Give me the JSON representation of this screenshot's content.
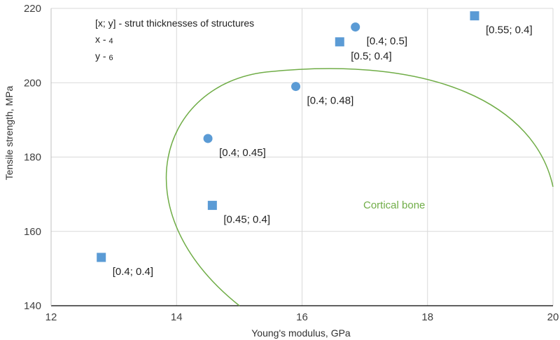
{
  "chart_data": {
    "type": "scatter",
    "xlabel": "Young's modulus, GPa",
    "ylabel": "Tensile strength, MPa",
    "xlim": [
      12,
      20
    ],
    "ylim": [
      140,
      220
    ],
    "x_ticks": [
      12,
      14,
      16,
      18,
      20
    ],
    "y_ticks": [
      140,
      160,
      180,
      200,
      220
    ],
    "grid": true,
    "marker_color": "#5B9BD5",
    "points": [
      {
        "x": 12.8,
        "y": 153,
        "marker": "square",
        "label": "[0.4; 0.4]"
      },
      {
        "x": 14.5,
        "y": 185,
        "marker": "circle",
        "label": "[0.4; 0.45]"
      },
      {
        "x": 14.57,
        "y": 167,
        "marker": "square",
        "label": "[0.45; 0.4]"
      },
      {
        "x": 15.9,
        "y": 199,
        "marker": "circle",
        "label": "[0.4; 0.48]"
      },
      {
        "x": 16.6,
        "y": 211,
        "marker": "square",
        "label": "[0.5; 0.4]"
      },
      {
        "x": 16.85,
        "y": 215,
        "marker": "circle",
        "label": "[0.4; 0.5]"
      },
      {
        "x": 18.75,
        "y": 218,
        "marker": "square",
        "label": "[0.55; 0.4]"
      }
    ],
    "legend_note": {
      "line1": "[x; y] - strut thicknesses of structures",
      "line2_prefix": "x - ",
      "line2_value": "4",
      "line3_prefix": "y - ",
      "line3_value": "6"
    },
    "region": {
      "label": "Cortical bone",
      "color": "#70AD47"
    }
  }
}
